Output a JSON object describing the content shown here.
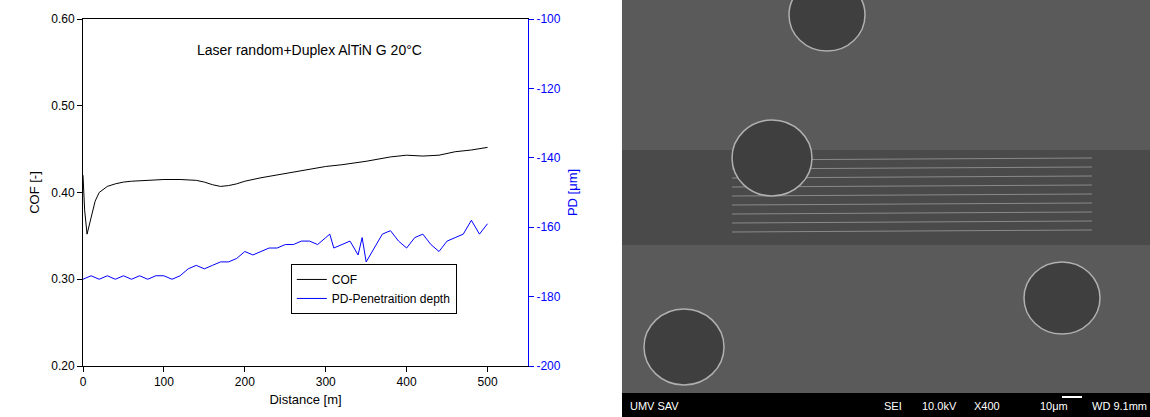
{
  "chart_data": {
    "type": "line",
    "title": "Laser random+Duplex AlTiN G 20°C",
    "x_label": "Distance [m]",
    "y_label": "COF [-]",
    "y2_label": "PD [μm]",
    "xlim": [
      0,
      550
    ],
    "xticks": [
      0,
      100,
      200,
      300,
      400,
      500
    ],
    "ylim": [
      0.2,
      0.6
    ],
    "yticks": [
      {
        "value": 0.2,
        "label": "0.20"
      },
      {
        "value": 0.3,
        "label": "0.30"
      },
      {
        "value": 0.4,
        "label": "0.40"
      },
      {
        "value": 0.5,
        "label": "0.50"
      },
      {
        "value": 0.6,
        "label": "0.60"
      }
    ],
    "y2lim": [
      -200,
      -100
    ],
    "y2ticks": [
      -200,
      -180,
      -160,
      -140,
      -120,
      -100
    ],
    "legend": "lower right",
    "series": [
      {
        "name": "COF",
        "color": "#000000",
        "x": [
          0,
          2,
          5,
          10,
          15,
          20,
          30,
          40,
          50,
          60,
          80,
          100,
          120,
          140,
          150,
          160,
          170,
          180,
          190,
          200,
          220,
          250,
          280,
          300,
          320,
          350,
          380,
          400,
          420,
          440,
          460,
          480,
          500
        ],
        "values": [
          0.42,
          0.38,
          0.352,
          0.37,
          0.39,
          0.4,
          0.407,
          0.41,
          0.412,
          0.413,
          0.414,
          0.415,
          0.415,
          0.414,
          0.412,
          0.409,
          0.407,
          0.408,
          0.41,
          0.413,
          0.417,
          0.422,
          0.427,
          0.43,
          0.432,
          0.436,
          0.441,
          0.443,
          0.442,
          0.443,
          0.447,
          0.449,
          0.452
        ]
      },
      {
        "name": "PD-Penetraition depth",
        "color": "#0000ff",
        "axis": "y2",
        "x": [
          0,
          10,
          20,
          30,
          40,
          50,
          60,
          70,
          80,
          90,
          100,
          110,
          120,
          130,
          140,
          150,
          160,
          170,
          180,
          190,
          200,
          210,
          220,
          230,
          240,
          250,
          260,
          270,
          280,
          290,
          300,
          305,
          310,
          320,
          330,
          340,
          345,
          350,
          360,
          370,
          380,
          390,
          400,
          410,
          420,
          430,
          440,
          450,
          460,
          470,
          480,
          490,
          500
        ],
        "values": [
          -175,
          -174,
          -175,
          -174,
          -175,
          -174,
          -175,
          -174,
          -175,
          -174,
          -174,
          -175,
          -174,
          -172,
          -171,
          -172,
          -171,
          -170,
          -170,
          -169,
          -167,
          -168,
          -167,
          -166,
          -166,
          -165,
          -165,
          -164,
          -164,
          -165,
          -163,
          -162,
          -166,
          -165,
          -164,
          -168,
          -163,
          -170,
          -166,
          -162,
          -161,
          -164,
          -166,
          -163,
          -162,
          -165,
          -167,
          -164,
          -163,
          -162,
          -158,
          -162,
          -159
        ]
      }
    ]
  },
  "image": {
    "footer": [
      "UMV SAV",
      "SEI",
      "10.0kV",
      "X400",
      "10μm",
      "WD 9.1mm"
    ]
  }
}
